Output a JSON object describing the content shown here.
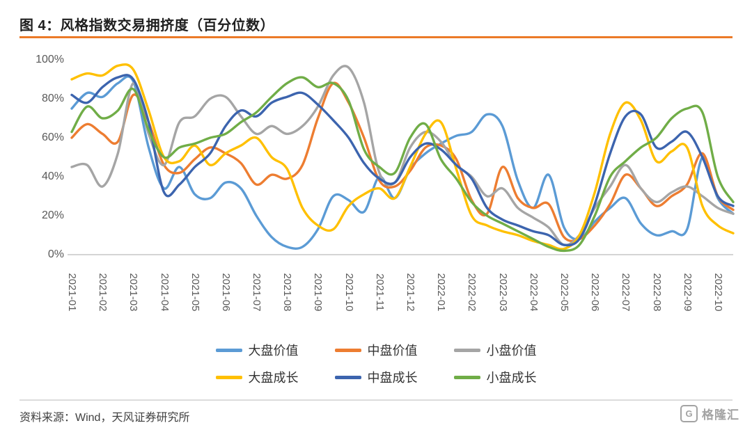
{
  "page": {
    "title": "图 4：风格指数交易拥挤度（百分位数）",
    "source_note": "资料来源：Wind，天风证券研究所",
    "logo": {
      "letter": "G",
      "text": "格隆汇"
    },
    "accent_color": "#EB7A28",
    "divider_color": "#DCDCDC"
  },
  "chart_data": {
    "type": "line",
    "title": "风格指数交易拥挤度（百分位数）",
    "grid": false,
    "legend_position": "bottom",
    "ylim": [
      0,
      100
    ],
    "y_ticks": [
      "0%",
      "20%",
      "40%",
      "60%",
      "80%",
      "100%"
    ],
    "x_ticks": [
      "2021-01",
      "2021-02",
      "2021-03",
      "2021-04",
      "2021-05",
      "2021-06",
      "2021-07",
      "2021-08",
      "2021-09",
      "2021-10",
      "2021-11",
      "2021-12",
      "2022-01",
      "2022-02",
      "2022-03",
      "2022-04",
      "2022-05",
      "2022-06",
      "2022-07",
      "2022-08",
      "2022-09",
      "2022-10"
    ],
    "points_per_month": 2,
    "x_start_month": "2021-01",
    "series": [
      {
        "id": "large-cap-value",
        "name": "大盘价值",
        "color": "#5B9BD5",
        "values": [
          75,
          83,
          81,
          88,
          89,
          55,
          34,
          45,
          31,
          29,
          37,
          34,
          20,
          9,
          4,
          4,
          13,
          30,
          28,
          22,
          40,
          29,
          44,
          52,
          57,
          61,
          63,
          72,
          66,
          38,
          24,
          41,
          14,
          8,
          17,
          24,
          29,
          16,
          10,
          12,
          13,
          50,
          29,
          21
        ]
      },
      {
        "id": "mid-cap-value",
        "name": "中盘价值",
        "color": "#ED7D31",
        "values": [
          60,
          67,
          62,
          58,
          82,
          68,
          46,
          42,
          49,
          55,
          52,
          47,
          36,
          41,
          39,
          46,
          70,
          88,
          78,
          60,
          38,
          35,
          43,
          55,
          56,
          49,
          28,
          21,
          45,
          29,
          24,
          26,
          9,
          8,
          15,
          26,
          41,
          34,
          25,
          30,
          36,
          52,
          30,
          23
        ]
      },
      {
        "id": "small-cap-value",
        "name": "小盘价值",
        "color": "#A5A5A5",
        "values": [
          45,
          46,
          35,
          52,
          88,
          62,
          46,
          68,
          71,
          80,
          81,
          71,
          62,
          66,
          62,
          66,
          76,
          92,
          96,
          78,
          42,
          37,
          55,
          63,
          58,
          46,
          40,
          30,
          34,
          24,
          19,
          14,
          5,
          10,
          24,
          35,
          46,
          34,
          27,
          32,
          35,
          30,
          24,
          21
        ]
      },
      {
        "id": "large-cap-growth",
        "name": "大盘成长",
        "color": "#FFC000",
        "values": [
          90,
          93,
          92,
          97,
          95,
          74,
          50,
          48,
          56,
          46,
          52,
          56,
          60,
          50,
          44,
          24,
          15,
          13,
          25,
          31,
          34,
          29,
          45,
          62,
          68,
          44,
          20,
          15,
          12,
          10,
          7,
          5,
          3,
          10,
          32,
          62,
          78,
          69,
          48,
          53,
          55,
          25,
          15,
          11
        ]
      },
      {
        "id": "mid-cap-growth",
        "name": "中盘成长",
        "color": "#3C64AE",
        "values": [
          82,
          78,
          86,
          91,
          90,
          68,
          32,
          36,
          45,
          52,
          66,
          74,
          71,
          78,
          81,
          83,
          77,
          69,
          60,
          47,
          39,
          37,
          50,
          57,
          54,
          46,
          39,
          24,
          18,
          15,
          12,
          10,
          5,
          8,
          26,
          52,
          71,
          72,
          55,
          58,
          63,
          50,
          30,
          25
        ]
      },
      {
        "id": "small-cap-growth",
        "name": "小盘成长",
        "color": "#70AD47",
        "values": [
          63,
          76,
          70,
          74,
          85,
          64,
          50,
          55,
          57,
          60,
          62,
          68,
          73,
          81,
          88,
          91,
          86,
          88,
          79,
          54,
          45,
          42,
          60,
          67,
          49,
          39,
          27,
          20,
          16,
          12,
          8,
          4,
          2,
          5,
          20,
          40,
          48,
          55,
          60,
          70,
          75,
          73,
          40,
          27
        ]
      }
    ],
    "legend_rows": [
      [
        "大盘价值",
        "中盘价值",
        "小盘价值"
      ],
      [
        "大盘成长",
        "中盘成长",
        "小盘成长"
      ]
    ]
  }
}
